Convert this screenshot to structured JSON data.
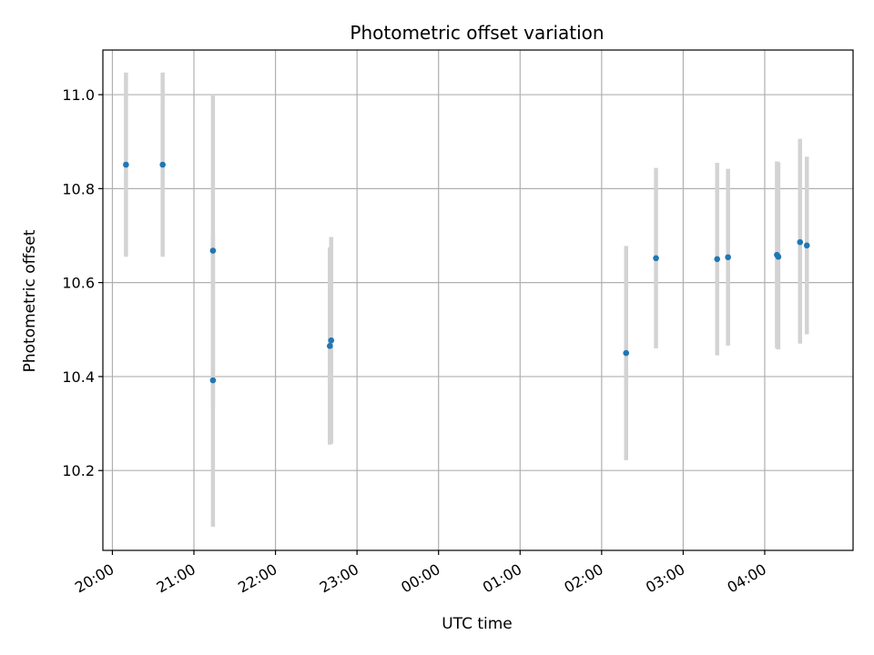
{
  "chart_data": {
    "type": "scatter",
    "title": "Photometric offset variation",
    "xlabel": "UTC time",
    "ylabel": "Photometric offset",
    "x_ticks": [
      "20:00",
      "21:00",
      "22:00",
      "23:00",
      "00:00",
      "01:00",
      "02:00",
      "03:00",
      "04:00"
    ],
    "y_ticks": [
      "10.2",
      "10.4",
      "10.6",
      "10.8",
      "11.0"
    ],
    "xlim": [
      "19:53",
      "05:05"
    ],
    "ylim": [
      10.03,
      11.095
    ],
    "grid": true,
    "colors": {
      "point": "#1f77b4",
      "errorbar": "#d3d3d3",
      "grid": "#b0b0b0"
    },
    "points": [
      {
        "x": "20:10",
        "y": 10.851,
        "lo": 10.655,
        "hi": 11.047
      },
      {
        "x": "20:37",
        "y": 10.851,
        "lo": 10.655,
        "hi": 11.047
      },
      {
        "x": "21:14",
        "y": 10.668,
        "lo": 10.335,
        "hi": 11.0
      },
      {
        "x": "21:14",
        "y": 10.392,
        "lo": 10.08,
        "hi": 10.7
      },
      {
        "x": "22:40",
        "y": 10.465,
        "lo": 10.255,
        "hi": 10.675
      },
      {
        "x": "22:41",
        "y": 10.477,
        "lo": 10.257,
        "hi": 10.697
      },
      {
        "x": "02:18",
        "y": 10.45,
        "lo": 10.222,
        "hi": 10.678
      },
      {
        "x": "02:40",
        "y": 10.652,
        "lo": 10.46,
        "hi": 10.844
      },
      {
        "x": "03:25",
        "y": 10.65,
        "lo": 10.445,
        "hi": 10.855
      },
      {
        "x": "03:33",
        "y": 10.654,
        "lo": 10.466,
        "hi": 10.842
      },
      {
        "x": "04:09",
        "y": 10.659,
        "lo": 10.46,
        "hi": 10.858
      },
      {
        "x": "04:10",
        "y": 10.655,
        "lo": 10.458,
        "hi": 10.856
      },
      {
        "x": "04:26",
        "y": 10.686,
        "lo": 10.47,
        "hi": 10.906
      },
      {
        "x": "04:31",
        "y": 10.679,
        "lo": 10.49,
        "hi": 10.868
      }
    ]
  }
}
